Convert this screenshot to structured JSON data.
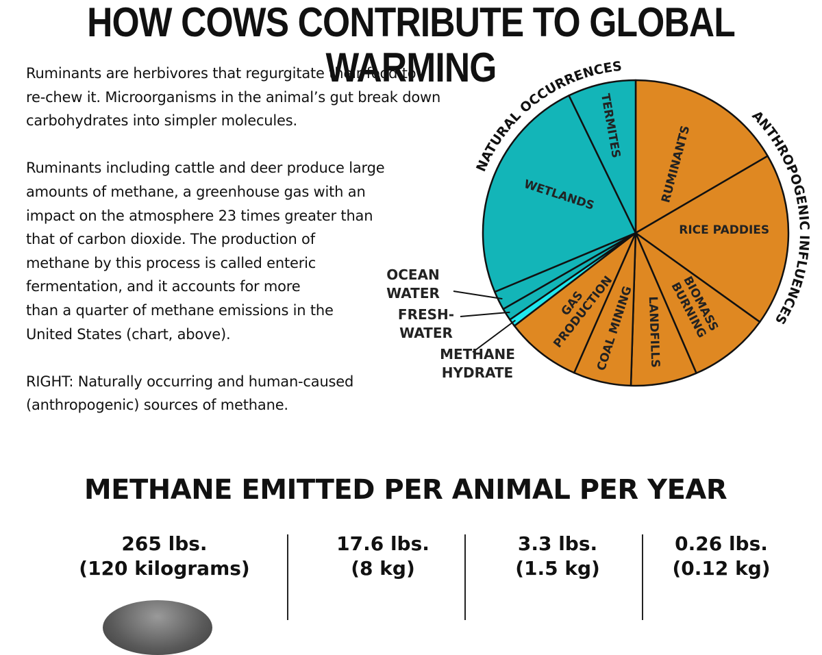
{
  "page_title": "HOW COWS CONTRIBUTE TO GLOBAL WARMING",
  "intro": {
    "p1": [
      "Ruminants are herbivores that regurgitate their food to",
      "re-chew it. Microorganisms in the animal’s gut break down",
      "carbohydrates into simpler molecules."
    ],
    "p2": [
      "Ruminants including cattle and deer produce large",
      "amounts of methane, a greenhouse gas with an",
      "impact on the atmosphere 23 times greater than",
      "that of carbon dioxide. The production of",
      "methane by this process is called enteric",
      "fermentation, and it accounts for more",
      "than a quarter of methane emissions in the",
      "United States (chart, above)."
    ],
    "p3": [
      "RIGHT: Naturally occurring and human-caused",
      "(anthropogenic) sources of methane."
    ]
  },
  "chart_data": [
    {
      "type": "pie",
      "title": "",
      "start_angle_deg": 0,
      "direction": "clockwise",
      "groups": [
        {
          "label": "NATURAL OCCURRENCES",
          "color": "#13b5b8"
        },
        {
          "label": "ANTHROPOGENIC INFLUENCES",
          "color": "#df8822"
        }
      ],
      "slices": [
        {
          "label": "RUMINANTS",
          "group": 1,
          "share_pct": 16.6,
          "color": "#df8822"
        },
        {
          "label": "RICE PADDIES",
          "group": 1,
          "share_pct": 18.3,
          "color": "#df8822"
        },
        {
          "label": "BIOMASS BURNING",
          "group": 1,
          "share_pct": 8.6,
          "color": "#df8822"
        },
        {
          "label": "LANDFILLS",
          "group": 1,
          "share_pct": 7.0,
          "color": "#df8822"
        },
        {
          "label": "COAL MINING",
          "group": 1,
          "share_pct": 6.1,
          "color": "#df8822"
        },
        {
          "label": "GAS PRODUCTION",
          "group": 1,
          "share_pct": 8.0,
          "color": "#df8822"
        },
        {
          "label": "METHANE HYDRATE",
          "group": 0,
          "share_pct": 0.8,
          "color": "#1fe8ee"
        },
        {
          "label": "FRESH-WATER",
          "group": 0,
          "share_pct": 1.3,
          "color": "#13b5b8"
        },
        {
          "label": "OCEAN WATER",
          "group": 0,
          "share_pct": 2.0,
          "color": "#13b5b8"
        },
        {
          "label": "WETLANDS",
          "group": 0,
          "share_pct": 24.1,
          "color": "#13b5b8"
        },
        {
          "label": "TERMITES",
          "group": 0,
          "share_pct": 7.2,
          "color": "#13b5b8"
        }
      ],
      "external_labels": [
        {
          "lines": [
            "OCEAN",
            "WATER"
          ],
          "slice": "OCEAN WATER"
        },
        {
          "lines": [
            "FRESH-",
            "WATER"
          ],
          "slice": "FRESH-WATER"
        },
        {
          "lines": [
            "METHANE",
            "HYDRATE"
          ],
          "slice": "METHANE HYDRATE"
        }
      ]
    },
    {
      "type": "table",
      "title": "METHANE EMITTED PER ANIMAL PER YEAR",
      "columns": [
        {
          "value_lbs": 265,
          "value_kg": 120,
          "line1": "265 lbs.",
          "line2": "(120 kilograms)"
        },
        {
          "value_lbs": 17.6,
          "value_kg": 8,
          "line1": "17.6 lbs.",
          "line2": "(8 kg)"
        },
        {
          "value_lbs": 3.3,
          "value_kg": 1.5,
          "line1": "3.3 lbs.",
          "line2": "(1.5 kg)"
        },
        {
          "value_lbs": 0.26,
          "value_kg": 0.12,
          "line1": "0.26 lbs.",
          "line2": "(0.12 kg)"
        }
      ]
    }
  ]
}
